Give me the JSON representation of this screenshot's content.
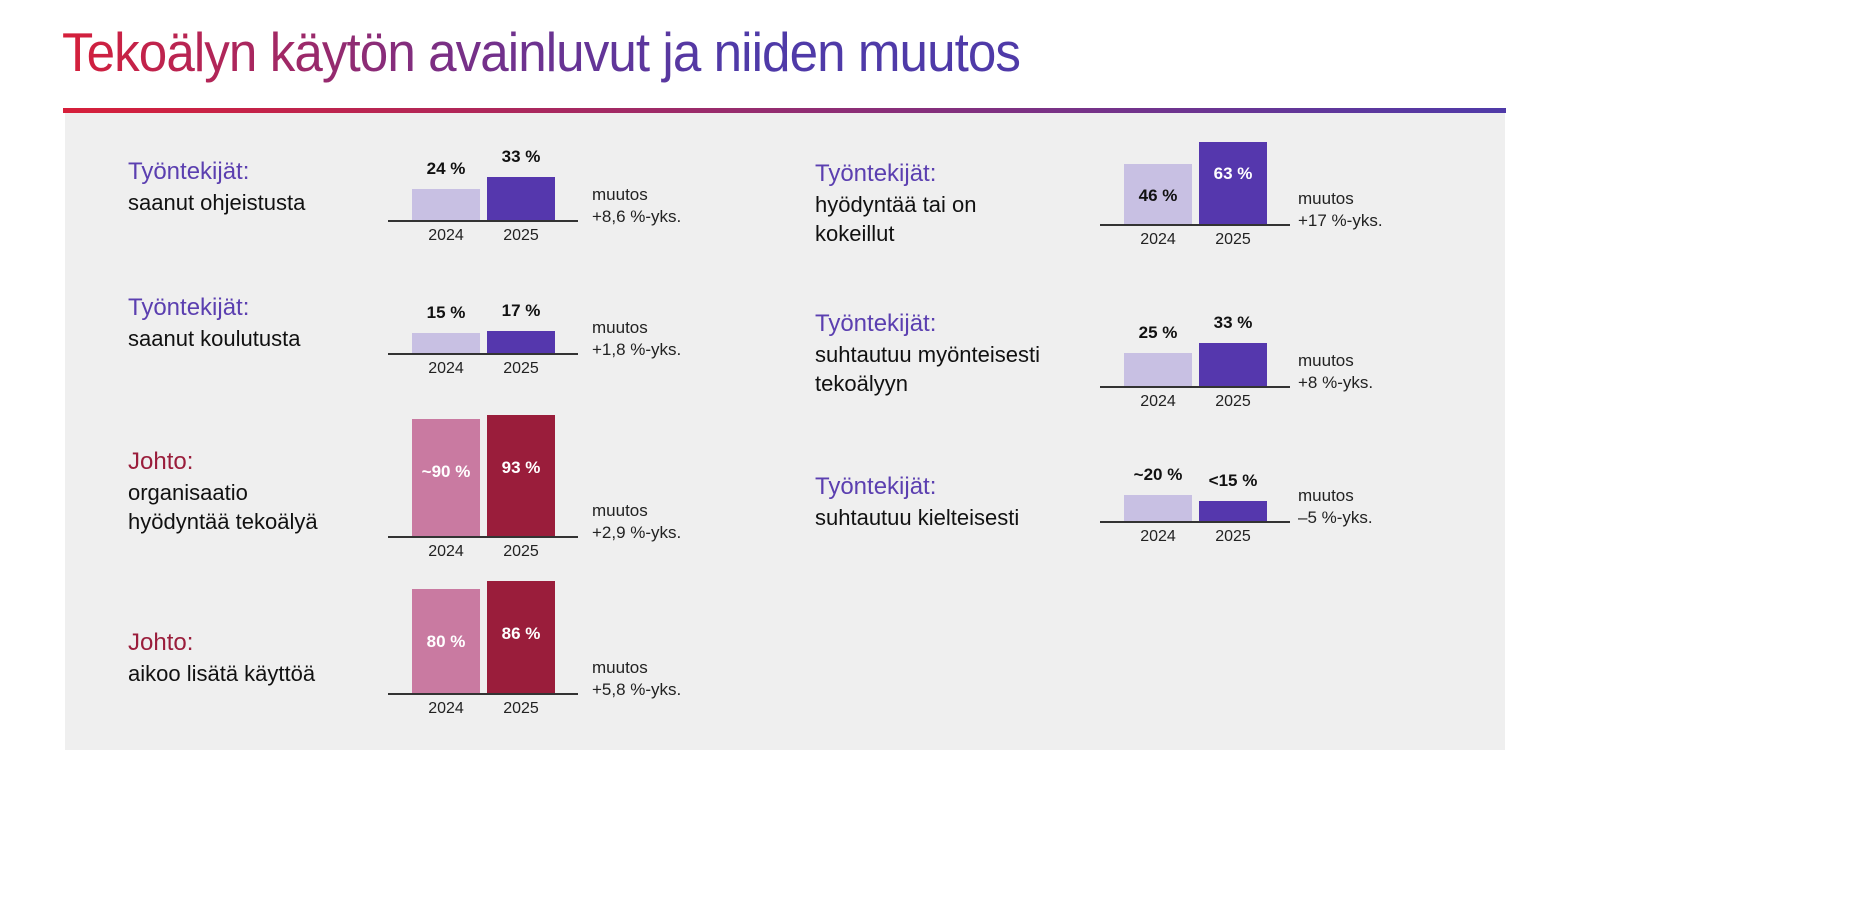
{
  "title": "Tekoälyn käytön avainluvut ja niiden muutos",
  "colors": {
    "employee_2024": "#c8c0e3",
    "employee_2025": "#5537ad",
    "employee_head": "#5b3fb0",
    "management_2024": "#c97aa1",
    "management_2025": "#9a1d3b",
    "management_head": "#9a1d3b"
  },
  "chart_data": {
    "type": "bar",
    "categories": [
      "2024",
      "2025"
    ],
    "unit": "%",
    "panels": [
      {
        "group": "Työntekijät:",
        "subject": [
          "saanut ohjeistusta"
        ],
        "values": [
          24,
          33
        ],
        "labels": [
          "24 %",
          "33 %"
        ],
        "change": [
          "muutos",
          "+8,6 %-yks."
        ],
        "palette": "employee"
      },
      {
        "group": "Työntekijät:",
        "subject": [
          "saanut koulutusta"
        ],
        "values": [
          15,
          17
        ],
        "labels": [
          "15 %",
          "17 %"
        ],
        "change": [
          "muutos",
          "+1,8 %-yks."
        ],
        "palette": "employee"
      },
      {
        "group": "Johto:",
        "subject": [
          "organisaatio",
          "hyödyntää tekoälyä"
        ],
        "values": [
          90,
          93
        ],
        "labels": [
          "~90 %",
          "93 %"
        ],
        "change": [
          "muutos",
          "+2,9 %-yks."
        ],
        "palette": "management"
      },
      {
        "group": "Johto:",
        "subject": [
          "aikoo lisätä käyttöä"
        ],
        "values": [
          80,
          86
        ],
        "labels": [
          "80 %",
          "86 %"
        ],
        "change": [
          "muutos",
          "+5,8 %-yks."
        ],
        "palette": "management"
      },
      {
        "group": "Työntekijät:",
        "subject": [
          "hyödyntää tai on",
          "kokeillut"
        ],
        "values": [
          46,
          63
        ],
        "labels": [
          "46 %",
          "63 %"
        ],
        "change": [
          "muutos",
          "+17 %-yks."
        ],
        "palette": "employee"
      },
      {
        "group": "Työntekijät:",
        "subject": [
          "suhtautuu myönteisesti",
          "tekoälyyn"
        ],
        "values": [
          25,
          33
        ],
        "labels": [
          "25 %",
          "33 %"
        ],
        "change": [
          "muutos",
          "+8 %-yks."
        ],
        "palette": "employee"
      },
      {
        "group": "Työntekijät:",
        "subject": [
          "suhtautuu kielteisesti"
        ],
        "values": [
          20,
          15
        ],
        "labels": [
          "~20 %",
          "<15 %"
        ],
        "change": [
          "muutos",
          "–5 %-yks."
        ],
        "palette": "employee"
      }
    ]
  }
}
